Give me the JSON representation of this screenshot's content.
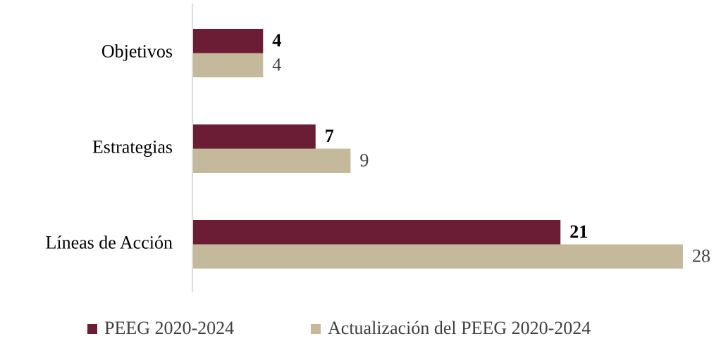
{
  "chart_data": {
    "type": "bar",
    "orientation": "horizontal",
    "categories": [
      "Objetivos",
      "Estrategias",
      "Líneas de Acción"
    ],
    "series": [
      {
        "name": "PEEG 2020-2024",
        "color": "#6b1d35",
        "values": [
          4,
          7,
          21
        ]
      },
      {
        "name": "Actualización del PEEG 2020-2024",
        "color": "#c4b99a",
        "values": [
          4,
          9,
          28
        ]
      }
    ],
    "xlim": [
      0,
      28
    ],
    "legend": "bottom"
  }
}
